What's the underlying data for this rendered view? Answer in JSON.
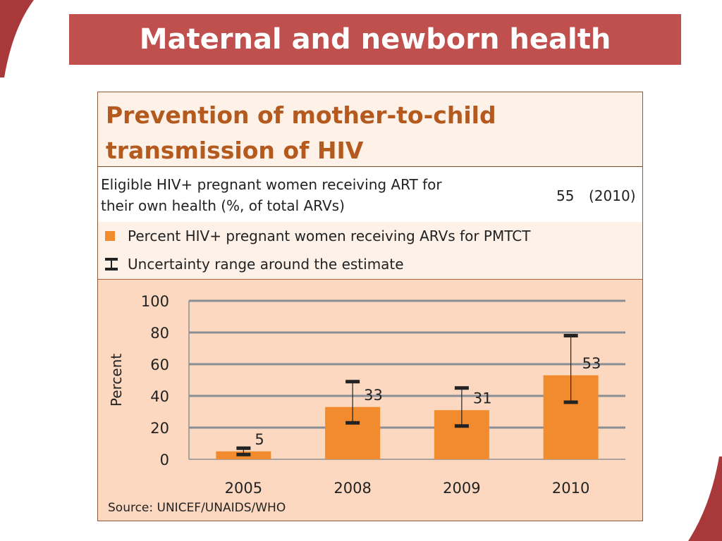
{
  "slide": {
    "title": "Maternal and newborn health",
    "accent_color": "#c0504d"
  },
  "panel": {
    "heading_line1": "Prevention of mother-to-child",
    "heading_line2": "transmission of HIV",
    "indicator": {
      "label_line1": "Eligible HIV+ pregnant women receiving ART for",
      "label_line2": "their own health (%, of total ARVs)",
      "value": "55",
      "year": "(2010)"
    },
    "legend": {
      "bar_label": "Percent HIV+ pregnant women receiving ARVs for PMTCT",
      "errorbar_label": "Uncertainty range around the estimate"
    },
    "source": "Source: UNICEF/UNAIDS/WHO"
  },
  "chart_data": {
    "type": "bar",
    "categories": [
      "2005",
      "2008",
      "2009",
      "2010"
    ],
    "values": [
      5,
      33,
      31,
      53
    ],
    "uncertainty_low": [
      3,
      23,
      21,
      36
    ],
    "uncertainty_high": [
      7,
      49,
      45,
      78
    ],
    "data_labels": [
      "5",
      "33",
      "31",
      "53"
    ],
    "ylabel": "Percent",
    "xlabel": "",
    "ylim": [
      0,
      100
    ],
    "yticks": [
      0,
      20,
      40,
      60,
      80,
      100
    ],
    "grid": true,
    "bar_color": "#f28a2e",
    "errorbar_color": "#222222",
    "grid_color": "#8a8f96",
    "plot_background": "#fbd8bf"
  }
}
